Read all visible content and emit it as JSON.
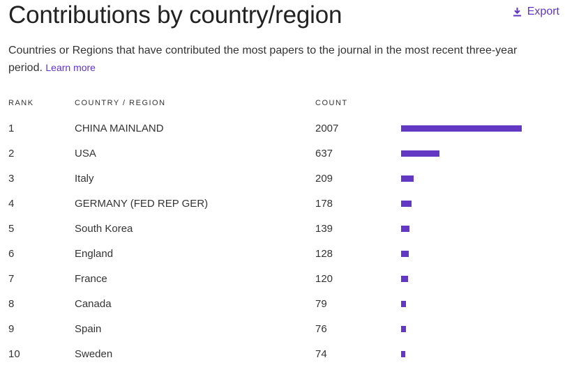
{
  "header": {
    "title": "Contributions by country/region",
    "export_label": "Export"
  },
  "description": {
    "text": "Countries or Regions that have contributed the most papers to the journal in the most recent three-year period.",
    "learn_more": "Learn more"
  },
  "table": {
    "columns": [
      "RANK",
      "COUNTRY / REGION",
      "COUNT"
    ],
    "max_count": 2007,
    "bar_color": "#6338c2",
    "rows": [
      {
        "rank": "1",
        "country": "CHINA MAINLAND",
        "count": "2007"
      },
      {
        "rank": "2",
        "country": "USA",
        "count": "637"
      },
      {
        "rank": "3",
        "country": "Italy",
        "count": "209"
      },
      {
        "rank": "4",
        "country": "GERMANY (FED REP GER)",
        "count": "178"
      },
      {
        "rank": "5",
        "country": "South Korea",
        "count": "139"
      },
      {
        "rank": "6",
        "country": "England",
        "count": "128"
      },
      {
        "rank": "7",
        "country": "France",
        "count": "120"
      },
      {
        "rank": "8",
        "country": "Canada",
        "count": "79"
      },
      {
        "rank": "9",
        "country": "Spain",
        "count": "76"
      },
      {
        "rank": "10",
        "country": "Sweden",
        "count": "74"
      }
    ]
  },
  "accent_color": "#5e33bf"
}
